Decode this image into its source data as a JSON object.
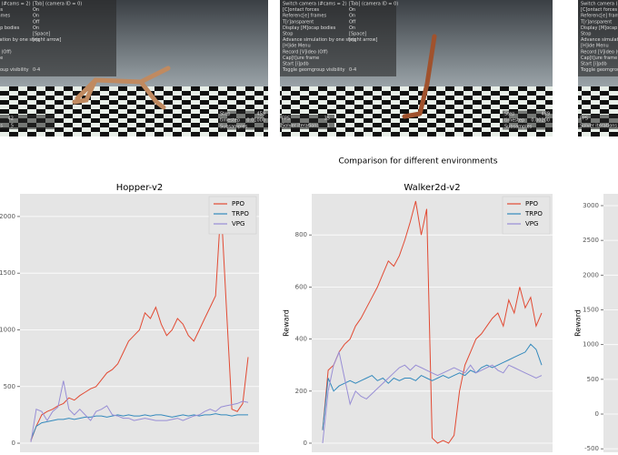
{
  "screenshots": {
    "menu": [
      [
        "Switch camera (#cams = 2)",
        "[Tab] (camera ID = 0)"
      ],
      [
        "[C]ontact forces",
        "On"
      ],
      [
        "Referenc[e] frames",
        "On"
      ],
      [
        "T[r]ansparent",
        "Off"
      ],
      [
        "Display [M]ocap bodies",
        "On"
      ],
      [
        "Stop",
        "[Space]"
      ],
      [
        "Advance simulation by one step",
        "[right arrow]"
      ],
      [
        "[H]ide Menu"
      ],
      [
        "Record [V]ideo (Off)"
      ],
      [
        "Cap[t]ure frame"
      ],
      [
        "Start [i]pdb"
      ],
      [
        "Toggle geomgroup visibility",
        "0-4"
      ]
    ],
    "panels": [
      {
        "stats": [
          [
            "FPS",
            "42"
          ],
          [
            "Solver iterations",
            "5"
          ]
        ],
        "stats_right": [
          [
            "Step",
            "459"
          ],
          [
            "timestep",
            "0.01000"
          ],
          [
            "Subsamples"
          ]
        ]
      },
      {
        "stats": [
          [
            "FPS",
            "35"
          ],
          [
            "Solver iterations",
            "1"
          ]
        ],
        "stats_right": [
          [
            "Step",
            "489"
          ],
          [
            "timestep",
            "0.00200"
          ],
          [
            "Subsamples"
          ]
        ]
      },
      {
        "stats": [
          [
            "FPS"
          ],
          [
            "Solver iterations"
          ]
        ]
      }
    ]
  },
  "suptitle": "Comparison for different environments",
  "chart_data": [
    {
      "type": "line",
      "title": "Hopper-v2",
      "ylim": [
        -80,
        2200
      ],
      "yticks": [
        0,
        500,
        1000,
        1500,
        2000
      ],
      "xlim": [
        -2,
        42
      ],
      "grid": true,
      "legend": "upper right",
      "x": [
        0,
        1,
        2,
        3,
        4,
        5,
        6,
        7,
        8,
        9,
        10,
        11,
        12,
        13,
        14,
        15,
        16,
        17,
        18,
        19,
        20,
        21,
        22,
        23,
        24,
        25,
        26,
        27,
        28,
        29,
        30,
        31,
        32,
        33,
        34,
        35,
        36,
        37,
        38,
        39,
        40
      ],
      "series": [
        {
          "name": "PPO",
          "color": "#e24a33",
          "values": [
            20,
            150,
            250,
            280,
            300,
            330,
            350,
            400,
            380,
            420,
            450,
            480,
            500,
            560,
            620,
            650,
            700,
            800,
            900,
            950,
            1000,
            1150,
            1100,
            1200,
            1050,
            950,
            1000,
            1100,
            1050,
            950,
            900,
            1000,
            1100,
            1200,
            1300,
            2100,
            1200,
            300,
            280,
            350,
            760
          ]
        },
        {
          "name": "TRPO",
          "color": "#348abd",
          "values": [
            30,
            150,
            180,
            190,
            200,
            210,
            210,
            220,
            210,
            220,
            230,
            230,
            240,
            240,
            230,
            240,
            250,
            240,
            250,
            240,
            240,
            250,
            240,
            250,
            250,
            240,
            230,
            240,
            250,
            240,
            250,
            240,
            250,
            250,
            260,
            250,
            250,
            240,
            250,
            250,
            250
          ]
        },
        {
          "name": "VPG",
          "color": "#988ed5",
          "values": [
            10,
            300,
            280,
            200,
            280,
            320,
            550,
            300,
            250,
            300,
            250,
            200,
            280,
            300,
            330,
            250,
            240,
            220,
            220,
            200,
            210,
            220,
            210,
            200,
            200,
            200,
            210,
            220,
            200,
            220,
            240,
            250,
            280,
            300,
            280,
            320,
            330,
            340,
            350,
            370,
            360
          ]
        }
      ]
    },
    {
      "type": "line",
      "title": "Walker2d-v2",
      "ylabel": "Reward",
      "ylim": [
        -35,
        958
      ],
      "yticks": [
        0,
        200,
        400,
        600,
        800
      ],
      "xlim": [
        -2,
        42
      ],
      "grid": true,
      "legend": "upper right",
      "x": [
        0,
        1,
        2,
        3,
        4,
        5,
        6,
        7,
        8,
        9,
        10,
        11,
        12,
        13,
        14,
        15,
        16,
        17,
        18,
        19,
        20,
        21,
        22,
        23,
        24,
        25,
        26,
        27,
        28,
        29,
        30,
        31,
        32,
        33,
        34,
        35,
        36,
        37,
        38,
        39,
        40
      ],
      "series": [
        {
          "name": "PPO",
          "color": "#e24a33",
          "values": [
            50,
            280,
            300,
            350,
            380,
            400,
            450,
            480,
            520,
            560,
            600,
            650,
            700,
            680,
            720,
            780,
            850,
            930,
            800,
            900,
            20,
            0,
            10,
            0,
            30,
            200,
            300,
            350,
            400,
            420,
            450,
            480,
            500,
            450,
            550,
            500,
            600,
            520,
            560,
            450,
            500
          ]
        },
        {
          "name": "TRPO",
          "color": "#348abd",
          "values": [
            50,
            250,
            200,
            220,
            230,
            240,
            230,
            240,
            250,
            260,
            240,
            250,
            230,
            250,
            240,
            250,
            250,
            240,
            260,
            250,
            240,
            250,
            260,
            250,
            260,
            270,
            260,
            280,
            270,
            290,
            300,
            290,
            300,
            310,
            320,
            330,
            340,
            350,
            380,
            360,
            300
          ]
        },
        {
          "name": "VPG",
          "color": "#988ed5",
          "values": [
            0,
            200,
            300,
            350,
            250,
            150,
            200,
            180,
            170,
            190,
            210,
            230,
            250,
            270,
            290,
            300,
            280,
            300,
            290,
            280,
            270,
            260,
            270,
            280,
            290,
            280,
            270,
            300,
            270,
            280,
            290,
            300,
            280,
            270,
            300,
            290,
            280,
            270,
            260,
            250,
            260
          ]
        }
      ]
    },
    {
      "type": "line",
      "ylabel": "Reward",
      "ylim": [
        -550,
        3170
      ],
      "yticks": [
        -500,
        0,
        500,
        1000,
        1500,
        2000,
        2500,
        3000
      ],
      "grid": true
    }
  ]
}
